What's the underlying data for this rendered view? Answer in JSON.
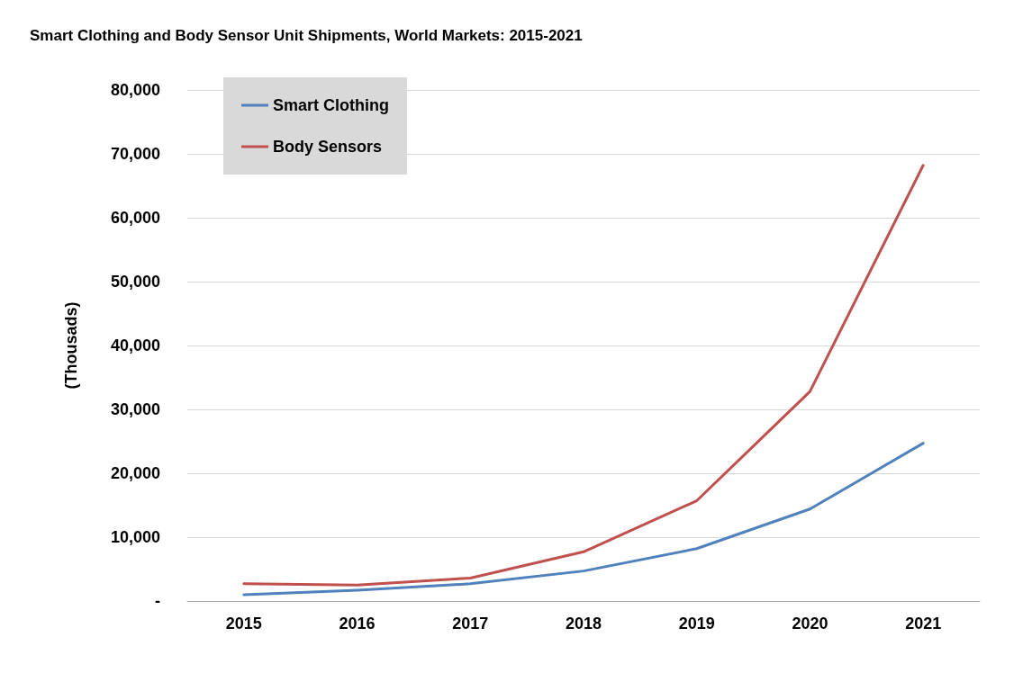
{
  "chart_data": {
    "type": "line",
    "title": "Smart Clothing and Body Sensor Unit Shipments, World Markets: 2015-2021",
    "ylabel": "(Thousads)",
    "categories": [
      "2015",
      "2016",
      "2017",
      "2018",
      "2019",
      "2020",
      "2021"
    ],
    "series": [
      {
        "name": "Smart Clothing",
        "color": "#4f81bd",
        "values": [
          1000,
          1700,
          2700,
          4700,
          8200,
          14400,
          24700
        ]
      },
      {
        "name": "Body Sensors",
        "color": "#c0504d",
        "values": [
          2700,
          2500,
          3600,
          7700,
          15700,
          32800,
          68200
        ]
      }
    ],
    "ylim": [
      0,
      80000
    ],
    "yticks": [
      {
        "value": 0,
        "label": "-"
      },
      {
        "value": 10000,
        "label": "10,000"
      },
      {
        "value": 20000,
        "label": "20,000"
      },
      {
        "value": 30000,
        "label": "30,000"
      },
      {
        "value": 40000,
        "label": "40,000"
      },
      {
        "value": 50000,
        "label": "50,000"
      },
      {
        "value": 60000,
        "label": "60,000"
      },
      {
        "value": 70000,
        "label": "70,000"
      },
      {
        "value": 80000,
        "label": "80,000"
      }
    ],
    "grid": "y",
    "legend": "top left",
    "marker": "none",
    "line_style": "solid"
  }
}
